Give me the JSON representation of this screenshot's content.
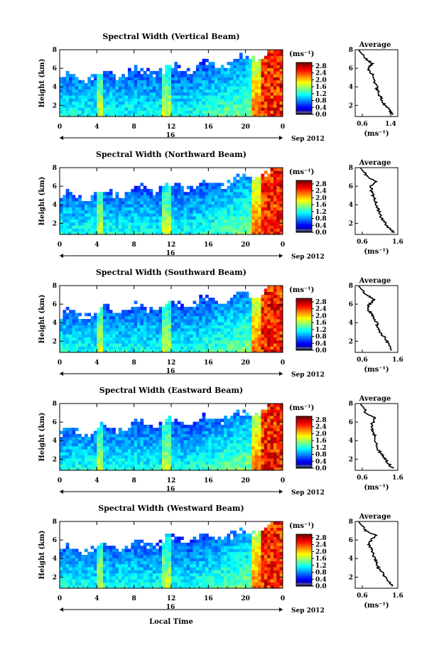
{
  "figure": {
    "xlabel": "Local Time",
    "date_label": "16",
    "month_label": "Sep 2012",
    "avg_title": "Average",
    "unit_label": "(ms⁻¹)"
  },
  "chart_data": [
    {
      "type": "heatmap",
      "title": "Spectral Width (Vertical Beam)",
      "ylabel": "Height (km)",
      "xlabel": "Local Time",
      "x_ticks": [
        "0",
        "4",
        "8",
        "12",
        "16",
        "20",
        "0"
      ],
      "y_ticks": [
        "2",
        "4",
        "6",
        "8"
      ],
      "xlim": [
        0,
        24
      ],
      "ylim": [
        0.8,
        8
      ],
      "colorbar": {
        "label": "(ms⁻¹)",
        "ticks": [
          "0.0",
          "0.4",
          "0.8",
          "1.2",
          "1.6",
          "2.0",
          "2.4",
          "2.8"
        ],
        "range": [
          0,
          3.0
        ]
      },
      "average_profile": {
        "title": "Average",
        "xlabel": "(ms⁻¹)",
        "x_ticks": [
          "0.6",
          "1.4"
        ],
        "xlim": [
          0.4,
          1.6
        ],
        "y_ticks": [
          "2",
          "4",
          "6",
          "8"
        ],
        "ylim": [
          0.8,
          8
        ],
        "height": [
          1.0,
          1.5,
          2.0,
          2.5,
          3.0,
          3.5,
          4.0,
          4.5,
          5.0,
          5.5,
          6.0,
          6.5,
          7.0,
          7.5
        ],
        "width": [
          1.45,
          1.35,
          1.25,
          1.15,
          1.1,
          1.05,
          1.0,
          0.95,
          0.95,
          0.85,
          0.75,
          0.9,
          0.7,
          0.6
        ]
      }
    },
    {
      "type": "heatmap",
      "title": "Spectral Width (Northward Beam)",
      "ylabel": "Height (km)",
      "xlabel": "Local Time",
      "x_ticks": [
        "0",
        "4",
        "8",
        "12",
        "16",
        "20",
        "0"
      ],
      "y_ticks": [
        "2",
        "4",
        "6",
        "8"
      ],
      "xlim": [
        0,
        24
      ],
      "ylim": [
        0.8,
        8
      ],
      "colorbar": {
        "label": "(ms⁻¹)",
        "ticks": [
          "0.0",
          "0.4",
          "0.8",
          "1.2",
          "1.6",
          "2.0",
          "2.4",
          "2.8"
        ],
        "range": [
          0,
          3.0
        ]
      },
      "average_profile": {
        "title": "Average",
        "xlabel": "(ms⁻¹)",
        "x_ticks": [
          "0.6",
          "1.6"
        ],
        "xlim": [
          0.4,
          1.6
        ],
        "y_ticks": [
          "2",
          "4",
          "6",
          "8"
        ],
        "ylim": [
          0.8,
          8
        ],
        "height": [
          1.0,
          1.5,
          2.0,
          2.5,
          3.0,
          3.5,
          4.0,
          4.5,
          5.0,
          5.5,
          6.0,
          6.5,
          7.0,
          7.5
        ],
        "width": [
          1.5,
          1.35,
          1.25,
          1.15,
          1.1,
          1.05,
          1.0,
          0.95,
          0.9,
          0.85,
          0.85,
          1.0,
          0.75,
          0.65
        ]
      }
    },
    {
      "type": "heatmap",
      "title": "Spectral Width (Southward Beam)",
      "ylabel": "Height (km)",
      "xlabel": "Local Time",
      "x_ticks": [
        "0",
        "4",
        "8",
        "12",
        "16",
        "20",
        "0"
      ],
      "y_ticks": [
        "2",
        "4",
        "6",
        "8"
      ],
      "xlim": [
        0,
        24
      ],
      "ylim": [
        0.8,
        8
      ],
      "colorbar": {
        "label": "(ms⁻¹)",
        "ticks": [
          "0.0",
          "0.4",
          "0.8",
          "1.2",
          "1.6",
          "2.0",
          "2.4",
          "2.8"
        ],
        "range": [
          0,
          3.0
        ]
      },
      "average_profile": {
        "title": "Average",
        "xlabel": "(ms⁻¹)",
        "x_ticks": [
          "0.6",
          "1.6"
        ],
        "xlim": [
          0.4,
          1.6
        ],
        "y_ticks": [
          "2",
          "4",
          "6",
          "8"
        ],
        "ylim": [
          0.8,
          8
        ],
        "height": [
          1.0,
          1.5,
          2.0,
          2.5,
          3.0,
          3.5,
          4.0,
          4.5,
          5.0,
          5.5,
          6.0,
          6.5,
          7.0,
          7.5
        ],
        "width": [
          1.45,
          1.35,
          1.3,
          1.2,
          1.1,
          1.05,
          1.0,
          0.9,
          0.85,
          0.75,
          0.8,
          0.95,
          0.7,
          0.6
        ]
      }
    },
    {
      "type": "heatmap",
      "title": "Spectral Width (Eastward Beam)",
      "ylabel": "Height (km)",
      "xlabel": "Local Time",
      "x_ticks": [
        "0",
        "4",
        "8",
        "12",
        "16",
        "20",
        "0"
      ],
      "y_ticks": [
        "2",
        "4",
        "6",
        "8"
      ],
      "xlim": [
        0,
        24
      ],
      "ylim": [
        0.8,
        8
      ],
      "colorbar": {
        "label": "(ms⁻¹)",
        "ticks": [
          "0.0",
          "0.4",
          "0.8",
          "1.2",
          "1.6",
          "2.0",
          "2.4",
          "2.8"
        ],
        "range": [
          0,
          3.0
        ]
      },
      "average_profile": {
        "title": "Average",
        "xlabel": "(ms⁻¹)",
        "x_ticks": [
          "0.6",
          "1.6"
        ],
        "xlim": [
          0.4,
          1.6
        ],
        "y_ticks": [
          "2",
          "4",
          "6",
          "8"
        ],
        "ylim": [
          0.8,
          8
        ],
        "height": [
          1.0,
          1.5,
          2.0,
          2.5,
          3.0,
          3.5,
          4.0,
          4.5,
          5.0,
          5.5,
          6.0,
          6.5,
          7.0,
          7.5
        ],
        "width": [
          1.45,
          1.35,
          1.25,
          1.15,
          1.05,
          1.0,
          0.95,
          0.95,
          0.9,
          0.85,
          0.9,
          0.95,
          0.7,
          0.65
        ]
      }
    },
    {
      "type": "heatmap",
      "title": "Spectral Width (Westward Beam)",
      "ylabel": "Height (km)",
      "xlabel": "Local Time",
      "x_ticks": [
        "0",
        "4",
        "8",
        "12",
        "16",
        "20",
        "0"
      ],
      "y_ticks": [
        "2",
        "4",
        "6",
        "8"
      ],
      "xlim": [
        0,
        24
      ],
      "ylim": [
        0.8,
        8
      ],
      "colorbar": {
        "label": "(ms⁻¹)",
        "ticks": [
          "0.0",
          "0.4",
          "0.8",
          "1.2",
          "1.6",
          "2.0",
          "2.4",
          "2.8"
        ],
        "range": [
          0,
          3.0
        ]
      },
      "average_profile": {
        "title": "Average",
        "xlabel": "(ms⁻¹)",
        "x_ticks": [
          "0.6",
          "1.6"
        ],
        "xlim": [
          0.4,
          1.6
        ],
        "y_ticks": [
          "2",
          "4",
          "6",
          "8"
        ],
        "ylim": [
          0.8,
          8
        ],
        "height": [
          1.0,
          1.5,
          2.0,
          2.5,
          3.0,
          3.5,
          4.0,
          4.5,
          5.0,
          5.5,
          6.0,
          6.5,
          7.0,
          7.5
        ],
        "width": [
          1.45,
          1.35,
          1.25,
          1.15,
          1.05,
          1.0,
          0.95,
          0.9,
          0.85,
          0.8,
          0.85,
          1.0,
          0.7,
          0.6
        ]
      }
    }
  ]
}
